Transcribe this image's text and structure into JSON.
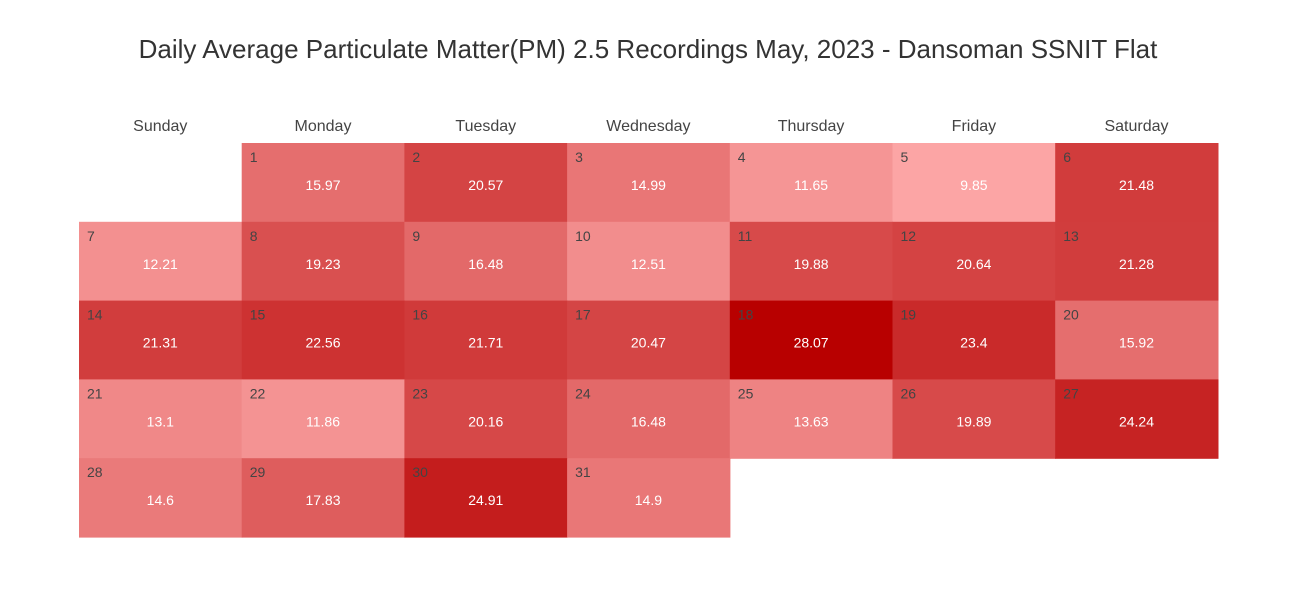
{
  "chart_data": {
    "type": "heatmap",
    "title": "Daily Average Particulate Matter(PM) 2.5 Recordings May, 2023 - Dansoman SSNIT Flat",
    "weekdays": [
      "Sunday",
      "Monday",
      "Tuesday",
      "Wednesday",
      "Thursday",
      "Friday",
      "Saturday"
    ],
    "first_weekday_index": 1,
    "days": [
      {
        "day": "1",
        "value": 15.97
      },
      {
        "day": "2",
        "value": 20.57
      },
      {
        "day": "3",
        "value": 14.99
      },
      {
        "day": "4",
        "value": 11.65
      },
      {
        "day": "5",
        "value": 9.85
      },
      {
        "day": "6",
        "value": 21.48
      },
      {
        "day": "7",
        "value": 12.21
      },
      {
        "day": "8",
        "value": 19.23
      },
      {
        "day": "9",
        "value": 16.48
      },
      {
        "day": "10",
        "value": 12.51
      },
      {
        "day": "11",
        "value": 19.88
      },
      {
        "day": "12",
        "value": 20.64
      },
      {
        "day": "13",
        "value": 21.28
      },
      {
        "day": "14",
        "value": 21.31
      },
      {
        "day": "15",
        "value": 22.56
      },
      {
        "day": "16",
        "value": 21.71
      },
      {
        "day": "17",
        "value": 20.47
      },
      {
        "day": "18",
        "value": 28.07
      },
      {
        "day": "19",
        "value": 23.4
      },
      {
        "day": "20",
        "value": 15.92
      },
      {
        "day": "21",
        "value": 13.1
      },
      {
        "day": "22",
        "value": 11.86
      },
      {
        "day": "23",
        "value": 20.16
      },
      {
        "day": "24",
        "value": 16.48
      },
      {
        "day": "25",
        "value": 13.63
      },
      {
        "day": "26",
        "value": 19.89
      },
      {
        "day": "27",
        "value": 24.24
      },
      {
        "day": "28",
        "value": 14.6
      },
      {
        "day": "29",
        "value": 17.83
      },
      {
        "day": "30",
        "value": 24.91
      },
      {
        "day": "31",
        "value": 14.9
      }
    ],
    "color_scale": {
      "low": "#fca5a5",
      "high": "#b80000"
    }
  }
}
